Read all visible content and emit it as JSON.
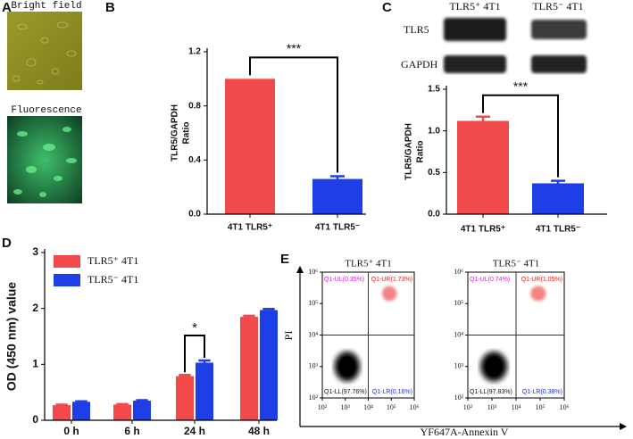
{
  "panel_labels": [
    "A",
    "B",
    "C",
    "D",
    "E"
  ],
  "images": [
    "Bright field",
    "Fluorescence"
  ],
  "western_blot": {
    "columns": [
      "TLR5⁺ 4T1",
      "TLR5⁻ 4T1"
    ],
    "rows": [
      "TLR5",
      "GAPDH"
    ]
  },
  "flow_axes": {
    "xlabel": "YF647A-Annexin V",
    "ylabel": "PI"
  },
  "chart_data": [
    {
      "type": "bar",
      "ylabel": [
        "TLR5/GAPDH",
        "Ratio"
      ],
      "categories": [
        "4T1 TLR5⁺",
        "4T1 TLR5⁻"
      ],
      "values": [
        1.0,
        0.26
      ],
      "errors": [
        null,
        0.02
      ],
      "colors": [
        "#f24a4a",
        "#1f3fe6"
      ],
      "ylim": [
        0,
        1.2
      ],
      "yticks": [
        {
          "value": 0,
          "label": "0.0"
        },
        0.4,
        0.8,
        1.2
      ],
      "annotation": "***"
    },
    {
      "type": "bar",
      "ylabel": [
        "TLR5/GAPDH",
        "Ratio"
      ],
      "categories": [
        "4T1 TLR5⁺",
        "4T1 TLR5⁻"
      ],
      "values": [
        1.12,
        0.37
      ],
      "errors": [
        0.05,
        0.03
      ],
      "colors": [
        "#f24a4a",
        "#1f3fe6"
      ],
      "ylim": [
        0,
        1.5
      ],
      "yticks": [
        {
          "value": 0,
          "label": "0.0"
        },
        0.5,
        {
          "value": 1,
          "label": "1.0"
        },
        1.5
      ],
      "annotation": "***"
    },
    {
      "type": "grouped_bar",
      "ylabel": "OD (450 nm) value",
      "categories": [
        "0 h",
        "6 h",
        "24 h",
        "48 h"
      ],
      "series": [
        {
          "name": "TLR5⁺ 4T1",
          "color": "#f24a4a",
          "values": [
            0.27,
            0.28,
            0.79,
            1.85
          ],
          "errors": [
            0.01,
            0.01,
            0.02,
            0.02
          ]
        },
        {
          "name": "TLR5⁻ 4T1",
          "color": "#1f3fe6",
          "values": [
            0.33,
            0.35,
            1.03,
            1.97
          ],
          "errors": [
            0.01,
            0.01,
            0.04,
            0.02
          ]
        }
      ],
      "ylim": [
        0,
        3
      ],
      "yticks": [
        0,
        1,
        2,
        3
      ],
      "annotation": "*"
    },
    {
      "type": "flow",
      "title": "TLR5⁺ 4T1",
      "log": true,
      "xlim": [
        100,
        1000000
      ],
      "ylim": [
        100,
        1000000
      ],
      "xticks": [
        {
          "value": 100,
          "label": "10²"
        },
        {
          "value": 1000,
          "label": "10³"
        },
        {
          "value": 10000,
          "label": "10⁴"
        },
        {
          "value": 100000,
          "label": "10⁵"
        },
        {
          "value": 1000000,
          "label": "10⁶"
        }
      ],
      "yticks": [
        {
          "value": 100,
          "label": "10²"
        },
        {
          "value": 1000,
          "label": "10³"
        },
        {
          "value": 10000,
          "label": "10⁴"
        },
        {
          "value": 100000,
          "label": "10⁵"
        },
        {
          "value": 1000000,
          "label": "10⁶"
        }
      ],
      "quadrant_labels": [
        "Q1-UL(0.35%)",
        "Q1-UR(1.73%)",
        "Q1-LL(97.76%)",
        "Q1-LR(0.16%)"
      ]
    },
    {
      "type": "flow",
      "title": "TLR5⁻ 4T1",
      "log": true,
      "xlim": [
        100,
        1000000
      ],
      "ylim": [
        100,
        1000000
      ],
      "xticks": [
        {
          "value": 100,
          "label": "10²"
        },
        {
          "value": 1000,
          "label": "10³"
        },
        {
          "value": 10000,
          "label": "10⁴"
        },
        {
          "value": 100000,
          "label": "10⁵"
        },
        {
          "value": 1000000,
          "label": "10⁶"
        }
      ],
      "yticks": [
        {
          "value": 100,
          "label": "10²"
        },
        {
          "value": 1000,
          "label": "10³"
        },
        {
          "value": 10000,
          "label": "10⁴"
        },
        {
          "value": 100000,
          "label": "10⁵"
        },
        {
          "value": 1000000,
          "label": "10⁶"
        }
      ],
      "quadrant_labels": [
        "Q1-UL(0.74%)",
        "Q1-UR(1.05%)",
        "Q1-LL(97.83%)",
        "Q1-LR(0.38%)"
      ]
    }
  ]
}
